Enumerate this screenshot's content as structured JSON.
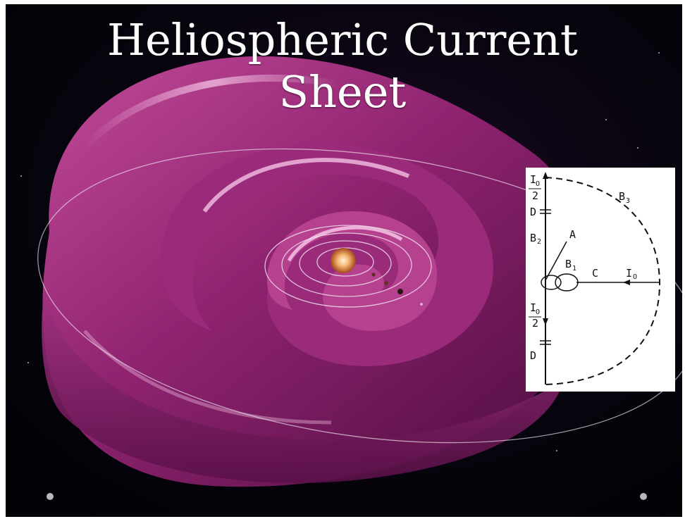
{
  "slide": {
    "title_line_1": "Heliospheric Current",
    "title_line_2": "Sheet"
  },
  "diagram": {
    "label_I": "I",
    "label_O": "O",
    "label_2": "2",
    "label_D": "D",
    "label_B": "B",
    "label_A": "A",
    "label_C": "C",
    "sub_1": "1",
    "sub_2": "2",
    "sub_3": "3"
  },
  "colors": {
    "background": "#000000",
    "sheet_magenta": "#b83b8c",
    "sheet_highlight": "#f2a9dc",
    "title_text": "#ffffff",
    "diagram_bg": "#ffffff"
  },
  "icons": {
    "prev": "circle-dot-icon",
    "next": "circle-dot-icon"
  }
}
